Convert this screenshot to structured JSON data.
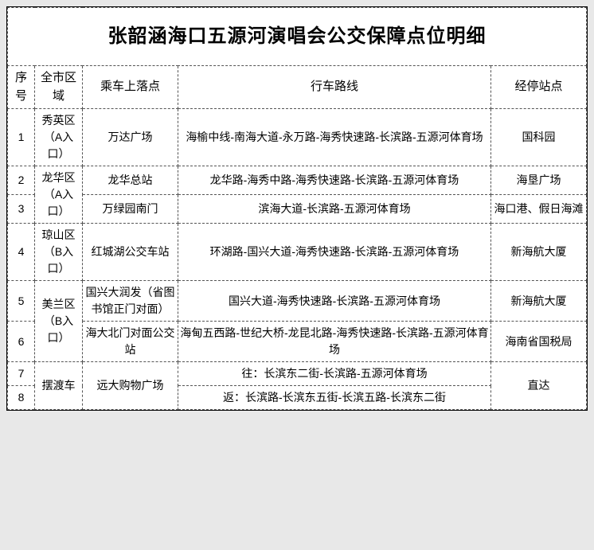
{
  "title": "张韶涵海口五源河演唱会公交保障点位明细",
  "headers": {
    "idx": "序号",
    "area": "全市区域",
    "stop": "乘车上落点",
    "route": "行车路线",
    "via": "经停站点"
  },
  "rows": {
    "r1": {
      "idx": "1",
      "area": "秀英区（A入口）",
      "stop": "万达广场",
      "route": "海榆中线-南海大道-永万路-海秀快速路-长滨路-五源河体育场",
      "via": "国科园"
    },
    "r2": {
      "idx": "2",
      "area": "龙华区（A入口）",
      "stop": "龙华总站",
      "route": "龙华路-海秀中路-海秀快速路-长滨路-五源河体育场",
      "via": "海垦广场"
    },
    "r3": {
      "idx": "3",
      "stop": "万绿园南门",
      "route": "滨海大道-长滨路-五源河体育场",
      "via": "海口港、假日海滩"
    },
    "r4": {
      "idx": "4",
      "area": "琼山区（B入口）",
      "stop": "红城湖公交车站",
      "route": "环湖路-国兴大道-海秀快速路-长滨路-五源河体育场",
      "via": "新海航大厦"
    },
    "r5": {
      "idx": "5",
      "area": "美兰区（B入口）",
      "stop": "国兴大润发（省图书馆正门对面）",
      "route": "国兴大道-海秀快速路-长滨路-五源河体育场",
      "via": "新海航大厦"
    },
    "r6": {
      "idx": "6",
      "stop": "海大北门对面公交站",
      "route": "海甸五西路-世纪大桥-龙昆北路-海秀快速路-长滨路-五源河体育场",
      "via": "海南省国税局"
    },
    "r7": {
      "idx": "7",
      "area": "摆渡车",
      "stop": "远大购物广场",
      "route": "往：长滨东二街-长滨路-五源河体育场",
      "via": "直达"
    },
    "r8": {
      "idx": "8",
      "route": "返：长滨路-长滨东五街-长滨五路-长滨东二街"
    }
  },
  "colors": {
    "bg": "#e8e8e8",
    "sheet": "#ffffff",
    "border": "#555555",
    "text": "#000000"
  }
}
